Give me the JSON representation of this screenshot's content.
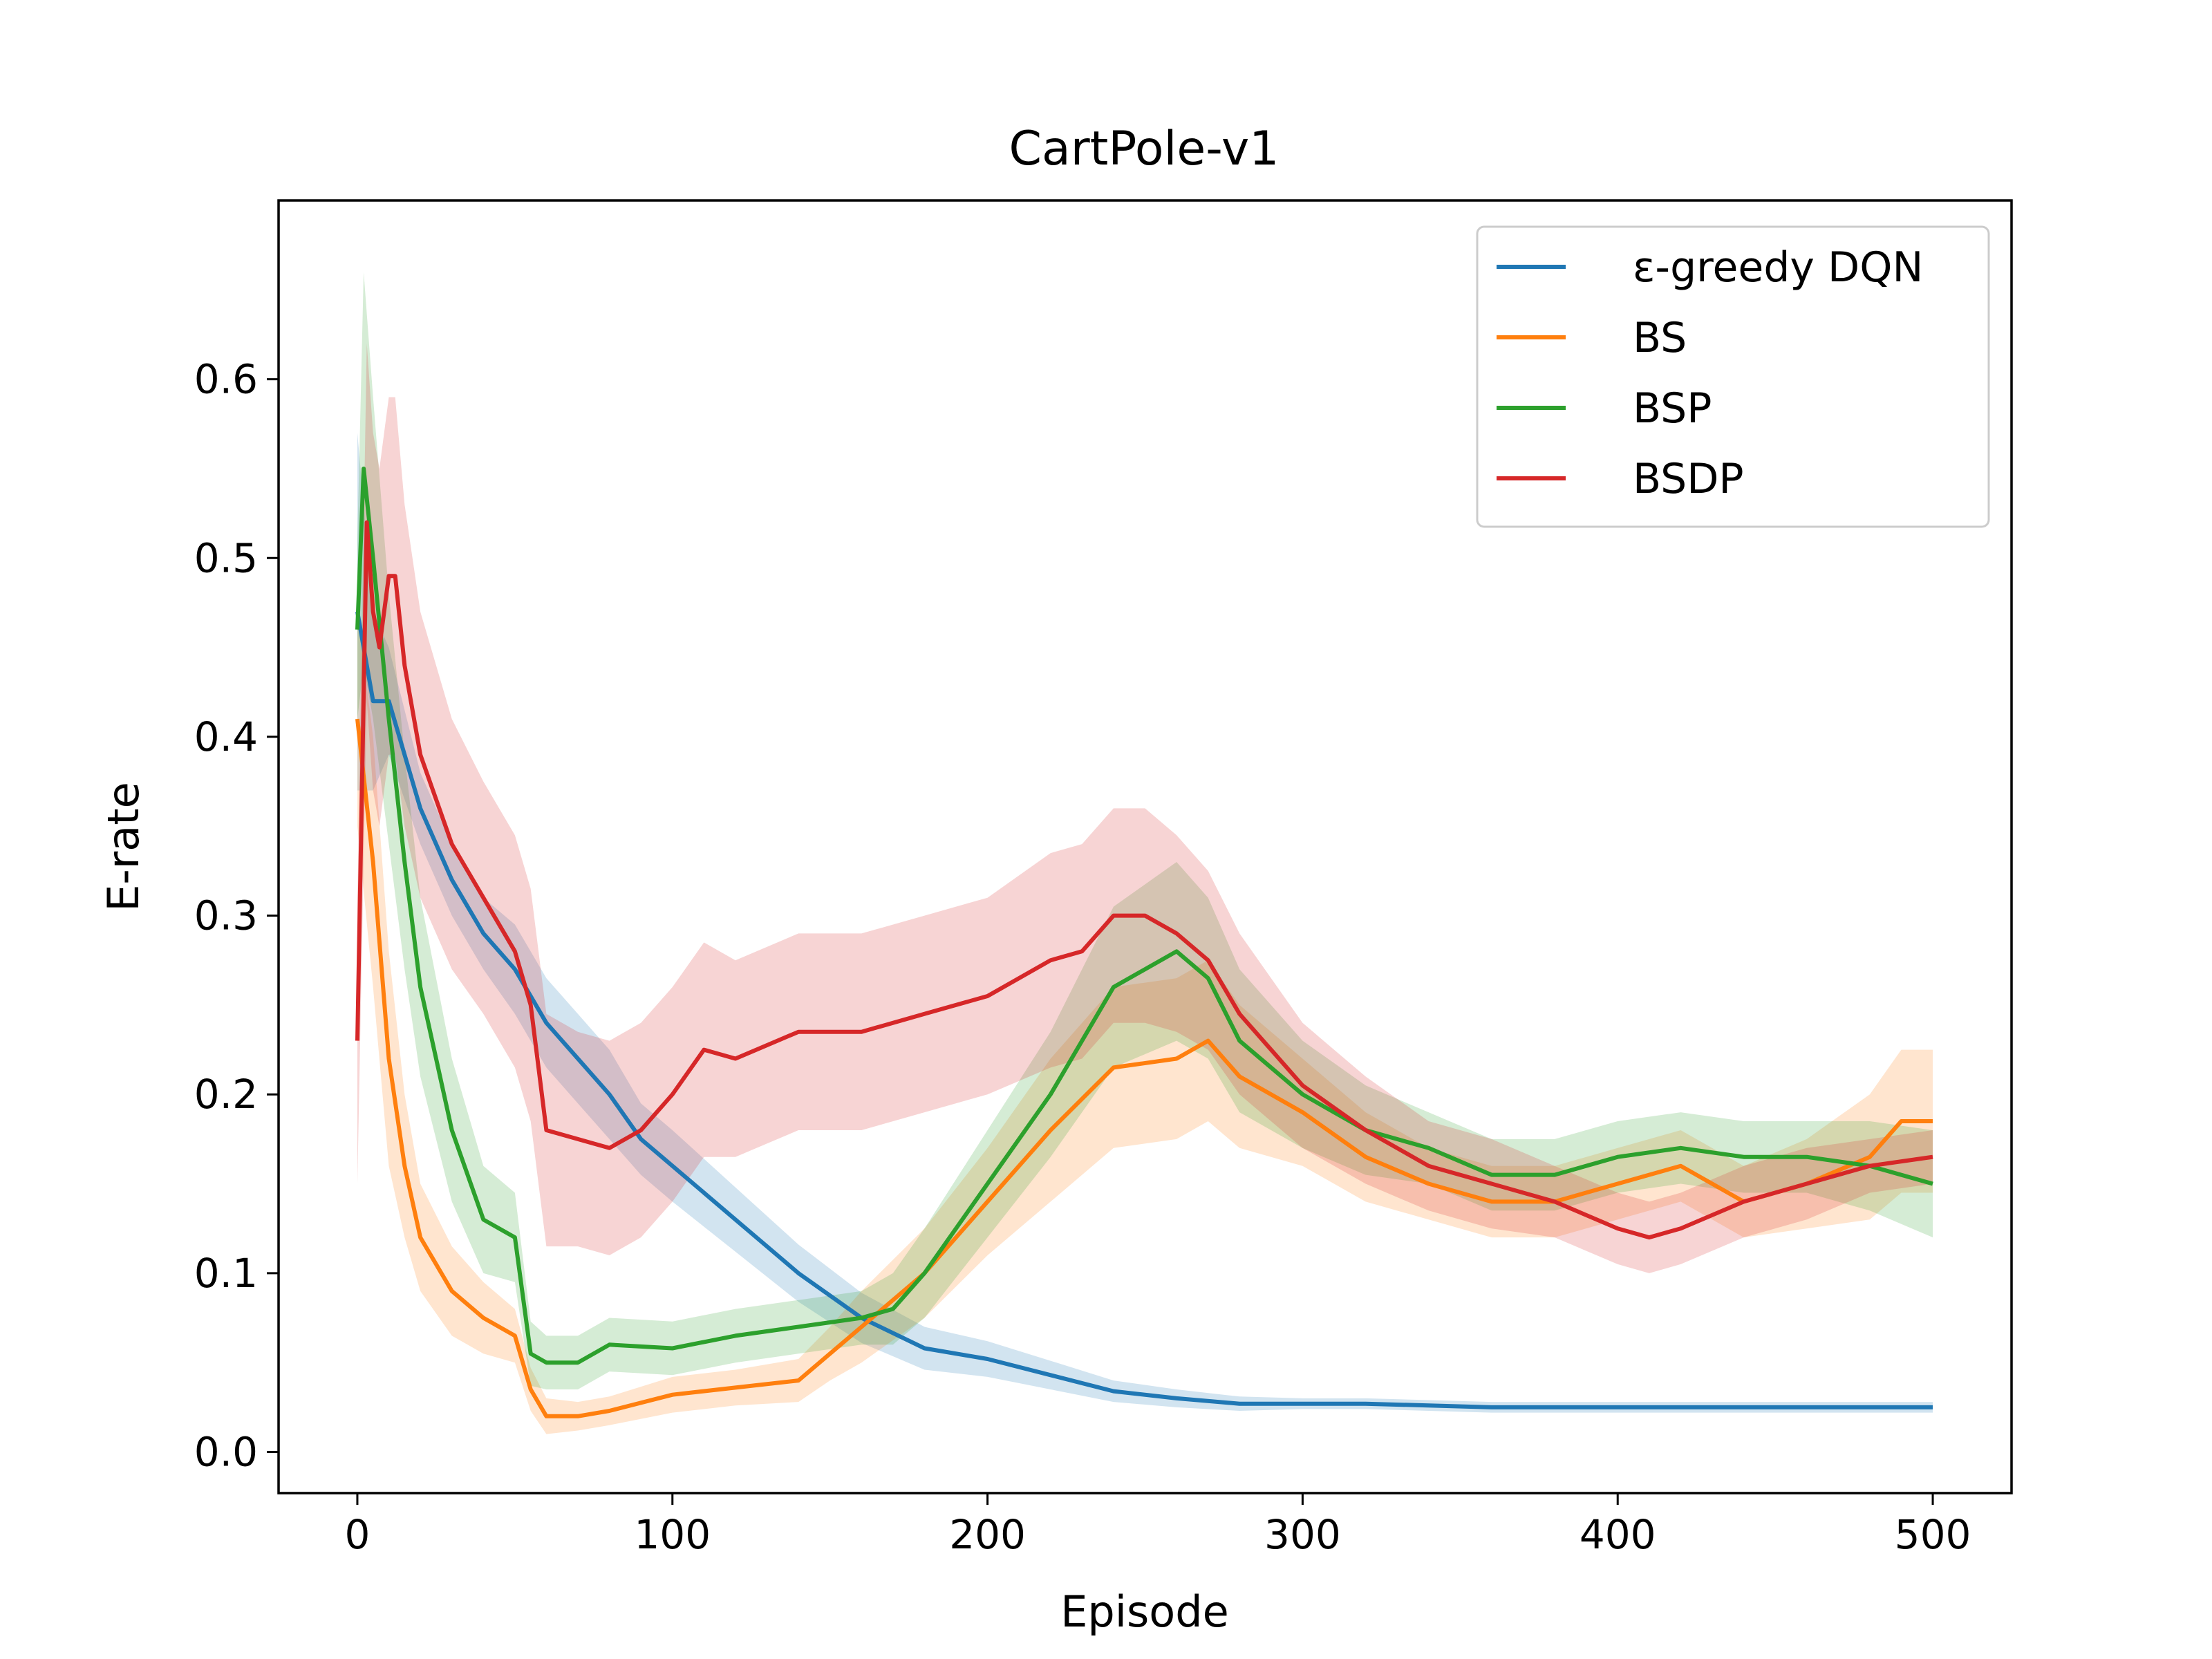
{
  "chart_data": {
    "type": "line",
    "title": "CartPole-v1",
    "xlabel": "Episode",
    "ylabel": "E-rate",
    "xlim": [
      -25,
      525
    ],
    "ylim": [
      -0.023,
      0.7
    ],
    "xticks": [
      0,
      100,
      200,
      300,
      400,
      500
    ],
    "yticks": [
      0.0,
      0.1,
      0.2,
      0.3,
      0.4,
      0.5,
      0.6
    ],
    "xtick_labels": [
      "0",
      "100",
      "200",
      "300",
      "400",
      "500"
    ],
    "ytick_labels": [
      "0.0",
      "0.1",
      "0.2",
      "0.3",
      "0.4",
      "0.5",
      "0.6"
    ],
    "grid": false,
    "legend": "top-right",
    "series": [
      {
        "name": "ε-greedy DQN",
        "color": "#1f77b4",
        "x": [
          0,
          5,
          10,
          20,
          30,
          40,
          50,
          60,
          70,
          80,
          90,
          100,
          120,
          140,
          160,
          180,
          200,
          220,
          240,
          260,
          280,
          300,
          320,
          340,
          360,
          380,
          400,
          420,
          440,
          460,
          480,
          500
        ],
        "y": [
          0.47,
          0.42,
          0.42,
          0.36,
          0.32,
          0.29,
          0.27,
          0.24,
          0.22,
          0.2,
          0.175,
          0.16,
          0.13,
          0.1,
          0.075,
          0.058,
          0.052,
          0.043,
          0.034,
          0.03,
          0.027,
          0.027,
          0.027,
          0.026,
          0.025,
          0.025,
          0.025,
          0.025,
          0.025,
          0.025,
          0.025,
          0.025
        ],
        "band": [
          0.1,
          0.05,
          0.03,
          0.02,
          0.02,
          0.02,
          0.025,
          0.025,
          0.025,
          0.025,
          0.02,
          0.02,
          0.018,
          0.016,
          0.014,
          0.012,
          0.01,
          0.008,
          0.006,
          0.005,
          0.004,
          0.003,
          0.003,
          0.003,
          0.003,
          0.003,
          0.003,
          0.003,
          0.003,
          0.003,
          0.003,
          0.003
        ]
      },
      {
        "name": "BS",
        "color": "#ff7f0e",
        "x": [
          0,
          5,
          10,
          15,
          20,
          30,
          40,
          50,
          55,
          60,
          70,
          80,
          100,
          120,
          140,
          150,
          160,
          180,
          200,
          220,
          240,
          260,
          270,
          280,
          300,
          320,
          340,
          360,
          380,
          400,
          420,
          440,
          460,
          480,
          490,
          500
        ],
        "y": [
          0.41,
          0.33,
          0.22,
          0.16,
          0.12,
          0.09,
          0.075,
          0.065,
          0.035,
          0.02,
          0.02,
          0.023,
          0.032,
          0.036,
          0.04,
          0.055,
          0.07,
          0.1,
          0.14,
          0.18,
          0.215,
          0.22,
          0.23,
          0.21,
          0.19,
          0.165,
          0.15,
          0.14,
          0.14,
          0.15,
          0.16,
          0.14,
          0.15,
          0.165,
          0.185,
          0.185
        ],
        "band": [
          0.06,
          0.07,
          0.06,
          0.04,
          0.03,
          0.025,
          0.02,
          0.015,
          0.012,
          0.01,
          0.008,
          0.008,
          0.01,
          0.01,
          0.012,
          0.015,
          0.02,
          0.025,
          0.03,
          0.04,
          0.045,
          0.045,
          0.045,
          0.04,
          0.03,
          0.025,
          0.02,
          0.02,
          0.02,
          0.02,
          0.02,
          0.02,
          0.025,
          0.035,
          0.04,
          0.04
        ]
      },
      {
        "name": "BSP",
        "color": "#2ca02c",
        "x": [
          0,
          2,
          5,
          10,
          15,
          20,
          30,
          40,
          50,
          55,
          60,
          70,
          80,
          100,
          120,
          140,
          160,
          170,
          180,
          200,
          220,
          240,
          260,
          270,
          280,
          300,
          320,
          340,
          360,
          380,
          400,
          420,
          440,
          460,
          480,
          500
        ],
        "y": [
          0.46,
          0.55,
          0.5,
          0.41,
          0.33,
          0.26,
          0.18,
          0.13,
          0.12,
          0.055,
          0.05,
          0.05,
          0.06,
          0.058,
          0.065,
          0.07,
          0.075,
          0.08,
          0.1,
          0.15,
          0.2,
          0.26,
          0.28,
          0.265,
          0.23,
          0.2,
          0.18,
          0.17,
          0.155,
          0.155,
          0.165,
          0.17,
          0.165,
          0.165,
          0.16,
          0.15
        ],
        "band": [
          0.05,
          0.11,
          0.09,
          0.07,
          0.06,
          0.05,
          0.04,
          0.03,
          0.025,
          0.018,
          0.015,
          0.015,
          0.015,
          0.015,
          0.015,
          0.015,
          0.015,
          0.02,
          0.025,
          0.03,
          0.035,
          0.045,
          0.05,
          0.045,
          0.04,
          0.03,
          0.025,
          0.02,
          0.02,
          0.02,
          0.02,
          0.02,
          0.02,
          0.02,
          0.025,
          0.03
        ]
      },
      {
        "name": "BSDP",
        "color": "#d62728",
        "x": [
          0,
          3,
          5,
          7,
          10,
          12,
          15,
          20,
          30,
          40,
          50,
          55,
          60,
          70,
          80,
          90,
          100,
          110,
          120,
          140,
          160,
          180,
          200,
          220,
          230,
          240,
          250,
          260,
          270,
          280,
          300,
          320,
          340,
          360,
          380,
          400,
          410,
          420,
          440,
          460,
          480,
          500
        ],
        "y": [
          0.23,
          0.52,
          0.47,
          0.45,
          0.49,
          0.49,
          0.44,
          0.39,
          0.34,
          0.31,
          0.28,
          0.25,
          0.18,
          0.175,
          0.17,
          0.18,
          0.2,
          0.225,
          0.22,
          0.235,
          0.235,
          0.245,
          0.255,
          0.275,
          0.28,
          0.3,
          0.3,
          0.29,
          0.275,
          0.245,
          0.205,
          0.18,
          0.16,
          0.15,
          0.14,
          0.125,
          0.12,
          0.125,
          0.14,
          0.15,
          0.16,
          0.165
        ],
        "band": [
          0.08,
          0.1,
          0.1,
          0.1,
          0.1,
          0.1,
          0.09,
          0.08,
          0.07,
          0.065,
          0.065,
          0.065,
          0.065,
          0.06,
          0.06,
          0.06,
          0.06,
          0.06,
          0.055,
          0.055,
          0.055,
          0.055,
          0.055,
          0.06,
          0.06,
          0.06,
          0.06,
          0.055,
          0.05,
          0.045,
          0.035,
          0.03,
          0.025,
          0.025,
          0.02,
          0.02,
          0.02,
          0.02,
          0.02,
          0.02,
          0.015,
          0.015
        ]
      }
    ]
  }
}
